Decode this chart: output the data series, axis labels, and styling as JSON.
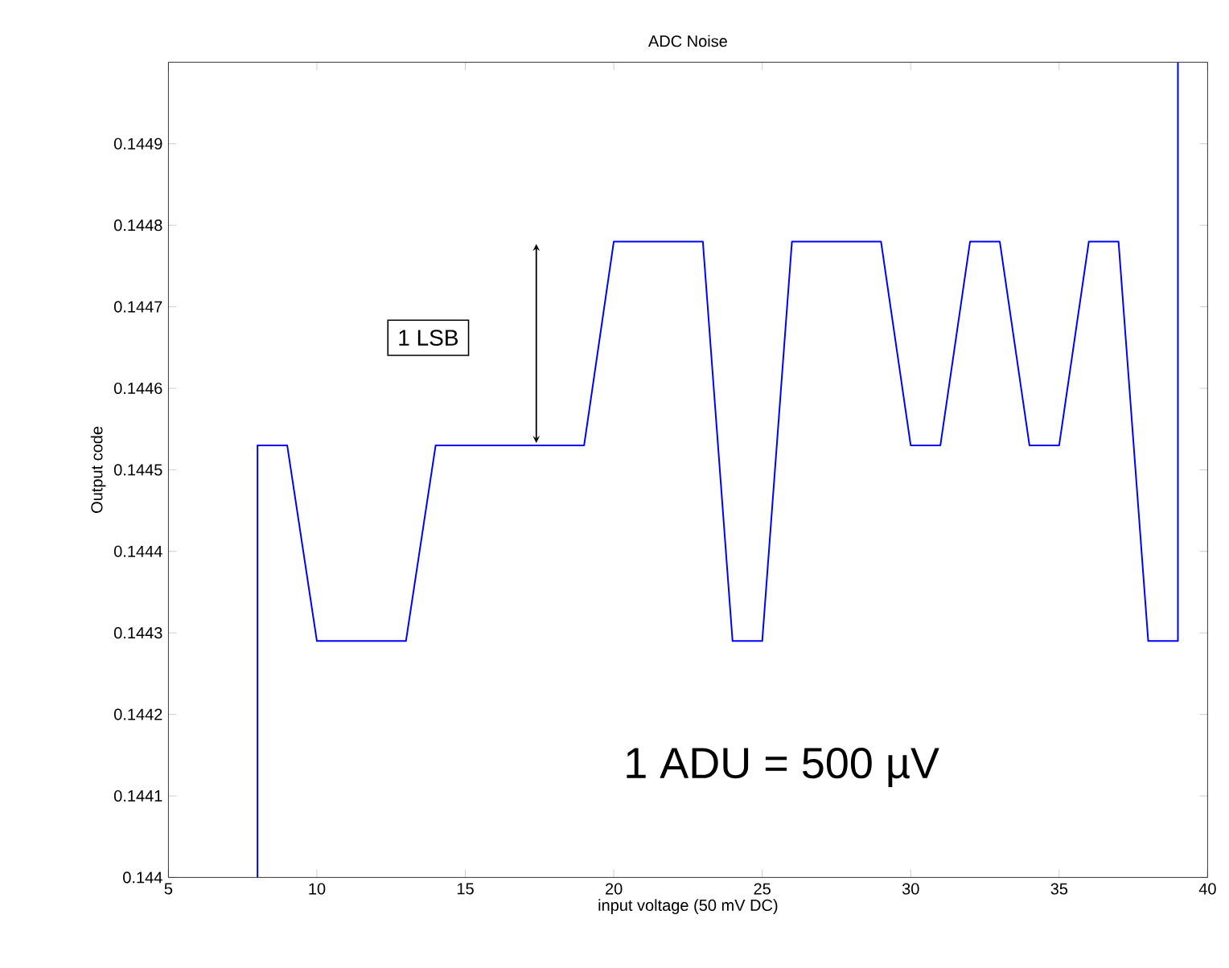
{
  "chart_data": {
    "type": "line",
    "title": "ADC Noise",
    "xlabel": "input voltage (50 mV DC)",
    "ylabel": "Output code",
    "x": [
      8,
      8,
      9,
      10,
      13,
      14,
      19,
      20,
      23,
      24,
      25,
      26,
      29,
      30,
      31,
      32,
      33,
      34,
      35,
      36,
      37,
      38,
      39,
      39
    ],
    "series": [
      {
        "color": "#0000ff",
        "values": [
          0.144,
          0.14453,
          0.14453,
          0.14429,
          0.14429,
          0.14453,
          0.14453,
          0.14478,
          0.14478,
          0.14429,
          0.14429,
          0.14478,
          0.14478,
          0.14453,
          0.14453,
          0.14478,
          0.14478,
          0.14453,
          0.14453,
          0.14478,
          0.14478,
          0.14429,
          0.14429,
          0.145
        ]
      }
    ],
    "xlim": [
      5,
      40
    ],
    "ylim": [
      0.144,
      0.145
    ],
    "xticks": [
      5,
      10,
      15,
      20,
      25,
      30,
      35,
      40
    ],
    "yticks": [
      0.144,
      0.1441,
      0.1442,
      0.1443,
      0.1444,
      0.1445,
      0.1446,
      0.1447,
      0.1448,
      0.1449
    ],
    "annotations": [
      "1 LSB",
      "1 ADU = 500 µV"
    ]
  }
}
